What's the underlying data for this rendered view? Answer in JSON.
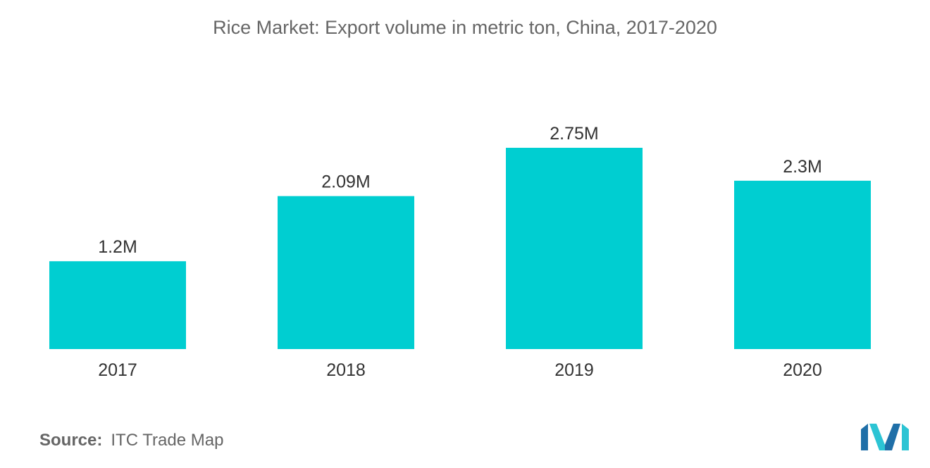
{
  "chart_data": {
    "type": "bar",
    "title": "Rice Market: Export volume in metric ton, China, 2017-2020",
    "categories": [
      "2017",
      "2018",
      "2019",
      "2020"
    ],
    "values": [
      1.2,
      2.09,
      2.75,
      2.3
    ],
    "value_labels": [
      "1.2M",
      "2.09M",
      "2.75M",
      "2.3M"
    ],
    "unit": "M",
    "xlabel": "",
    "ylabel": "",
    "ylim": [
      0,
      2.75
    ],
    "grid": false,
    "legend": "none",
    "bar_color": "#00CED1"
  },
  "source": {
    "label": "Source:",
    "text": "ITC Trade Map"
  },
  "logo": {
    "icon": "mordor-intelligence-logo-icon",
    "colors": [
      "#1F6FA8",
      "#2CC4D4"
    ]
  }
}
